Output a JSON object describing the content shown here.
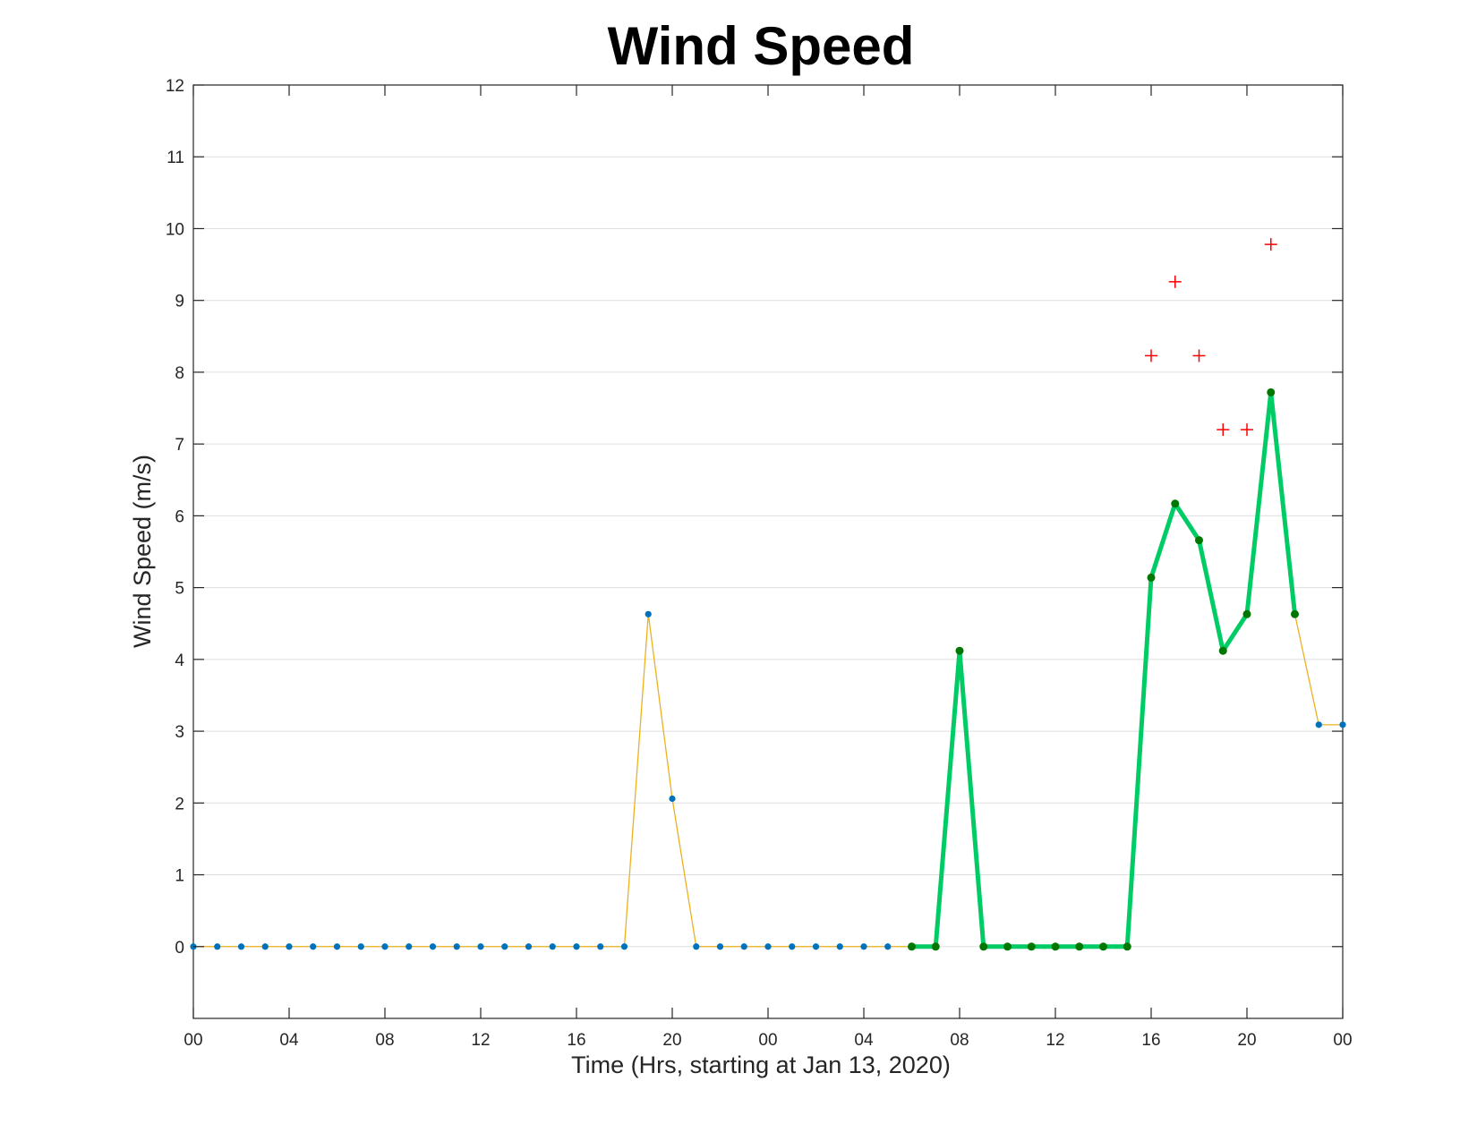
{
  "chart_data": {
    "type": "line",
    "title": "Wind Speed",
    "xlabel": "Time (Hrs, starting at Jan 13, 2020)",
    "ylabel": "Wind Speed (m/s)",
    "xlim": [
      0,
      48
    ],
    "ylim": [
      -1,
      12
    ],
    "grid": "y",
    "x_tick_values": [
      0,
      4,
      8,
      12,
      16,
      20,
      24,
      28,
      32,
      36,
      40,
      44,
      48
    ],
    "x_tick_labels": [
      "00",
      "04",
      "08",
      "12",
      "16",
      "20",
      "00",
      "04",
      "08",
      "12",
      "16",
      "20",
      "00"
    ],
    "y_tick_values": [
      0,
      1,
      2,
      3,
      4,
      5,
      6,
      7,
      8,
      9,
      10,
      11,
      12
    ],
    "y_tick_labels": [
      "0",
      "1",
      "2",
      "3",
      "4",
      "5",
      "6",
      "7",
      "8",
      "9",
      "10",
      "11",
      "12"
    ],
    "series": [
      {
        "color": "#EDB120",
        "marker_color": "#0072BD",
        "x": [
          0,
          1,
          2,
          3,
          4,
          5,
          6,
          7,
          8,
          9,
          10,
          11,
          12,
          13,
          14,
          15,
          16,
          17,
          18,
          19,
          20,
          21,
          22,
          23,
          24,
          25,
          26,
          27,
          28,
          29,
          30,
          31,
          32,
          33,
          34,
          35,
          36,
          37,
          38,
          39,
          40,
          41,
          42,
          43,
          44,
          45,
          46,
          47,
          48
        ],
        "values": [
          0,
          0,
          0,
          0,
          0,
          0,
          0,
          0,
          0,
          0,
          0,
          0,
          0,
          0,
          0,
          0,
          0,
          0,
          0,
          4.63,
          2.06,
          0,
          0,
          0,
          0,
          0,
          0,
          0,
          0,
          0,
          0,
          0,
          4.12,
          0,
          0,
          0,
          0,
          0,
          0,
          0,
          5.14,
          6.17,
          5.66,
          4.12,
          4.63,
          7.72,
          4.63,
          3.09,
          3.09
        ]
      },
      {
        "color": "#00CC66",
        "marker_color": "#007700",
        "x": [
          30,
          31,
          32,
          33,
          34,
          35,
          36,
          37,
          38,
          39,
          40,
          41,
          42,
          43,
          44,
          45,
          46
        ],
        "values": [
          0,
          0,
          4.12,
          0,
          0,
          0,
          0,
          0,
          0,
          0,
          5.14,
          6.17,
          5.66,
          4.12,
          4.63,
          7.72,
          4.63
        ]
      },
      {
        "marker": "+",
        "color": "#FF0000",
        "x": [
          40,
          41,
          42,
          43,
          44,
          45
        ],
        "values": [
          8.23,
          9.26,
          8.23,
          7.2,
          7.2,
          9.78
        ]
      }
    ]
  }
}
